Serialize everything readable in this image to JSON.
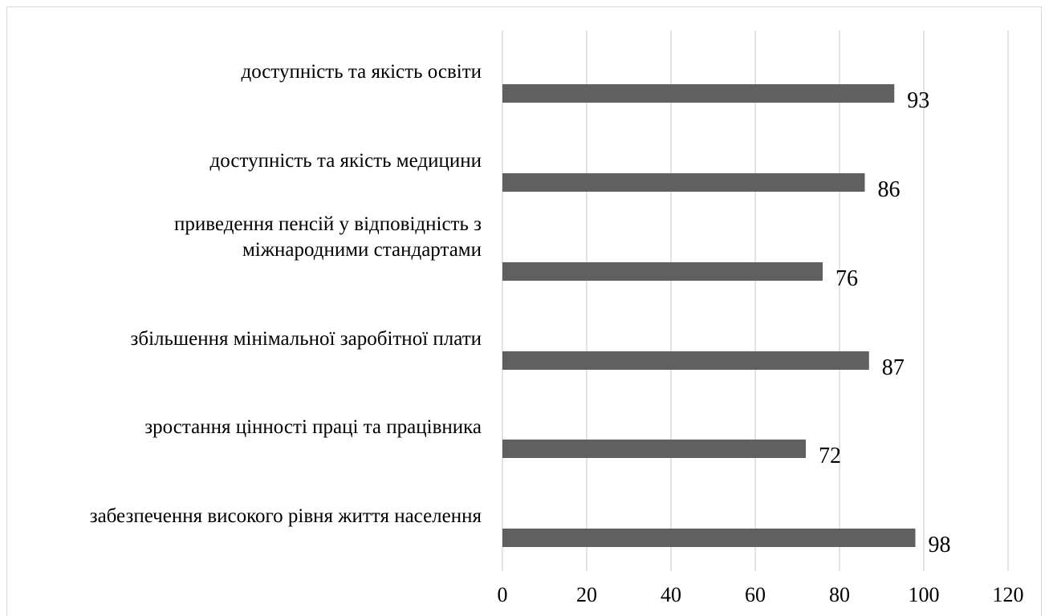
{
  "chart_data": {
    "type": "bar",
    "orientation": "horizontal",
    "categories": [
      [
        "доступність та якість освіти"
      ],
      [
        "доступність та якість медицини"
      ],
      [
        "приведення пенсій у відповідність з",
        "міжнародними стандартами"
      ],
      [
        "збільшення мінімальної заробітної плати"
      ],
      [
        "зростання цінності праці та працівника"
      ],
      [
        "забезпечення високого рівня життя населення"
      ]
    ],
    "values": [
      93,
      86,
      76,
      87,
      72,
      98
    ],
    "data_labels": [
      "93",
      "86",
      "76",
      "87",
      "72",
      "98"
    ],
    "xlim": [
      0,
      120
    ],
    "x_ticks": [
      0,
      20,
      40,
      60,
      80,
      100,
      120
    ],
    "x_tick_labels": [
      "0",
      "20",
      "40",
      "60",
      "80",
      "100",
      "120"
    ],
    "grid": "vertical",
    "legend": "none",
    "bar_color": "#606060",
    "gridline_color": "#d9d9d9"
  }
}
